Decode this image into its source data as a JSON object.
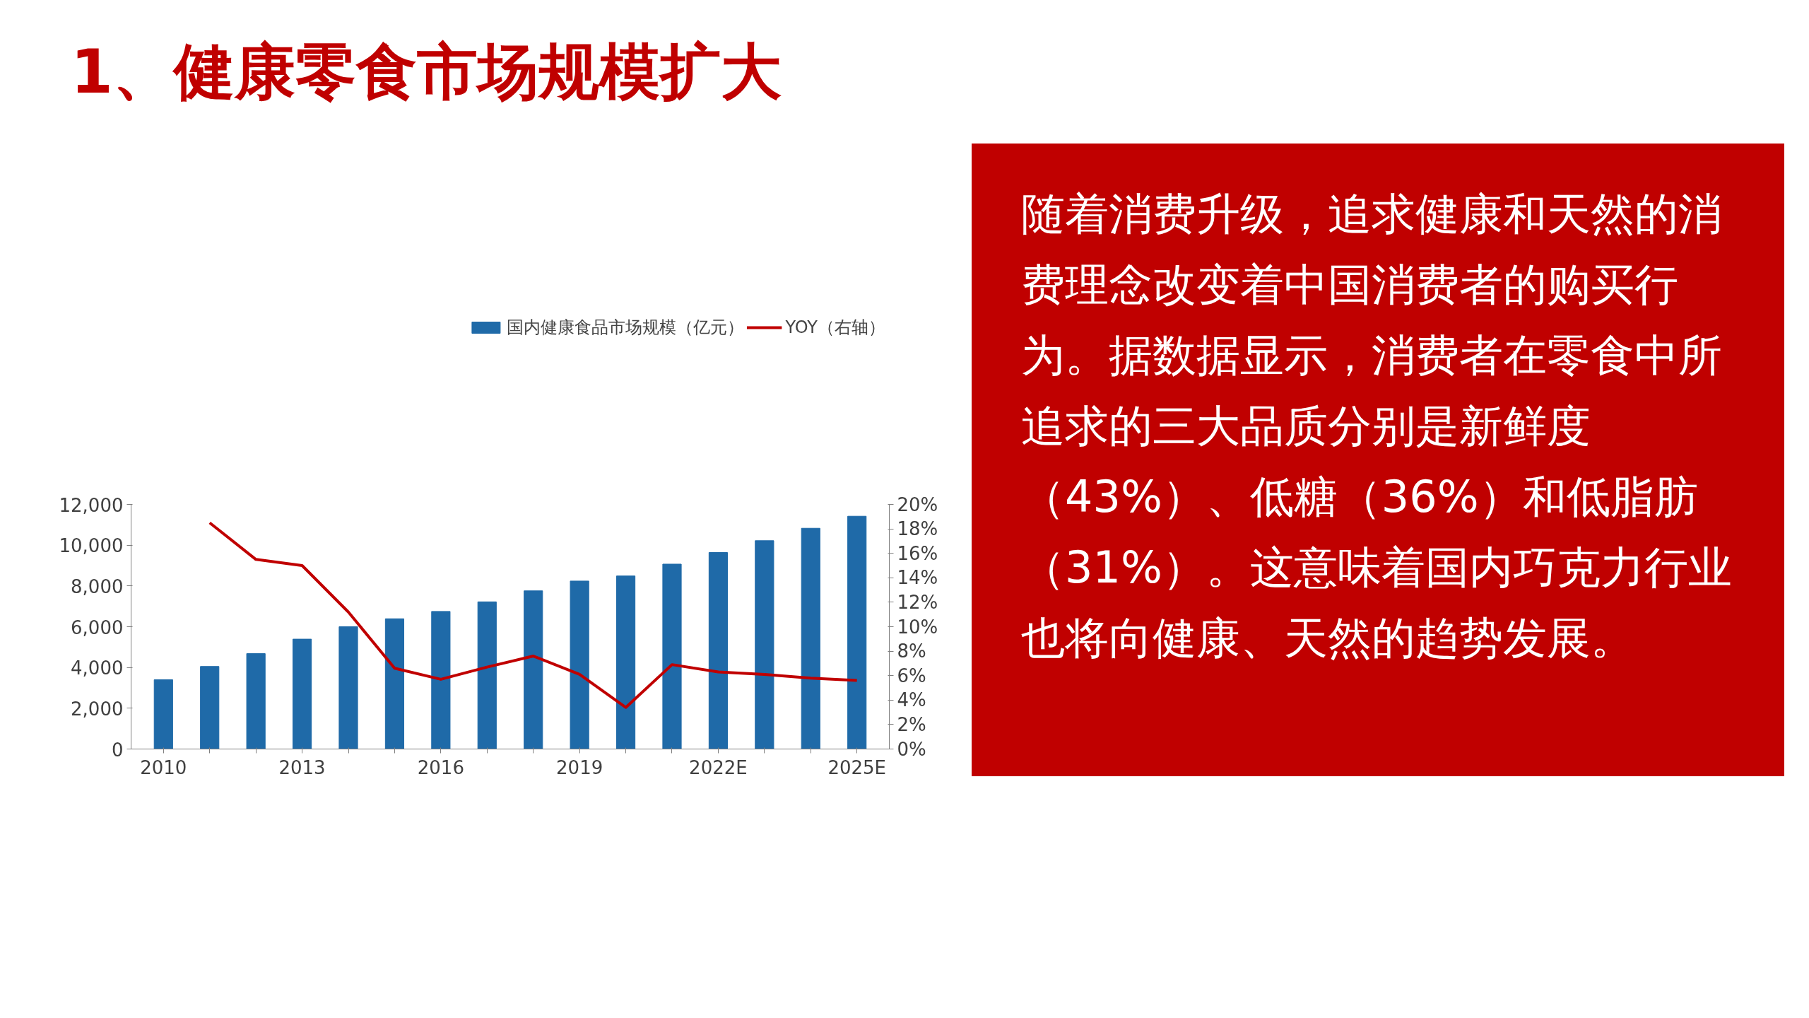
{
  "chart_data": {
    "type": "bar",
    "title": "1、健康零食市场规模扩大",
    "categories": [
      "2010",
      null,
      null,
      "2013",
      null,
      null,
      "2016",
      null,
      null,
      "2019",
      null,
      null,
      "2022E",
      null,
      null,
      "2025E"
    ],
    "series": [
      {
        "name": "国内健康食品市场规模（亿元）",
        "color": "#1f6aa8",
        "type": "bar",
        "values": [
          3400,
          4050,
          4680,
          5390,
          6000,
          6390,
          6750,
          7220,
          7760,
          8240,
          8490,
          9070,
          9640,
          10220,
          10830,
          11420
        ]
      },
      {
        "name": "YOY（右轴）",
        "color": "#c00000",
        "type": "line",
        "axis": "y2",
        "values": [
          null,
          18.5,
          15.5,
          15.0,
          11.2,
          6.6,
          5.7,
          6.7,
          7.6,
          6.1,
          3.4,
          6.9,
          6.3,
          6.1,
          5.8,
          5.6
        ]
      }
    ],
    "ylim": [
      0,
      12000
    ],
    "yticks": [
      {
        "value": 0,
        "label": "0"
      },
      {
        "value": 2000,
        "label": "2,000"
      },
      {
        "value": 4000,
        "label": "4,000"
      },
      {
        "value": 6000,
        "label": "6,000"
      },
      {
        "value": 8000,
        "label": "8,000"
      },
      {
        "value": 10000,
        "label": "10,000"
      },
      {
        "value": 12000,
        "label": "12,000"
      }
    ],
    "y2lim": [
      0,
      20
    ],
    "y2ticks": [
      {
        "value": 0,
        "label": "0%"
      },
      {
        "value": 2,
        "label": "2%"
      },
      {
        "value": 4,
        "label": "4%"
      },
      {
        "value": 6,
        "label": "6%"
      },
      {
        "value": 8,
        "label": "8%"
      },
      {
        "value": 10,
        "label": "10%"
      },
      {
        "value": 12,
        "label": "12%"
      },
      {
        "value": 14,
        "label": "14%"
      },
      {
        "value": 16,
        "label": "16%"
      },
      {
        "value": 18,
        "label": "18%"
      },
      {
        "value": 20,
        "label": "20%"
      }
    ],
    "grid": false,
    "legend": "top",
    "line_style": "solid",
    "annotations": [
      "随着消费升级，追求健康和天然的消费理念改变着中国消费者的购买行为。据数据显示，消费者在零食中所追求的三大品质分别是新鲜度（43%）、低糖（36%）和低脂肪（31%）。这意味着国内巧克力行业也将向健康、天然的趋势发展。"
    ]
  }
}
